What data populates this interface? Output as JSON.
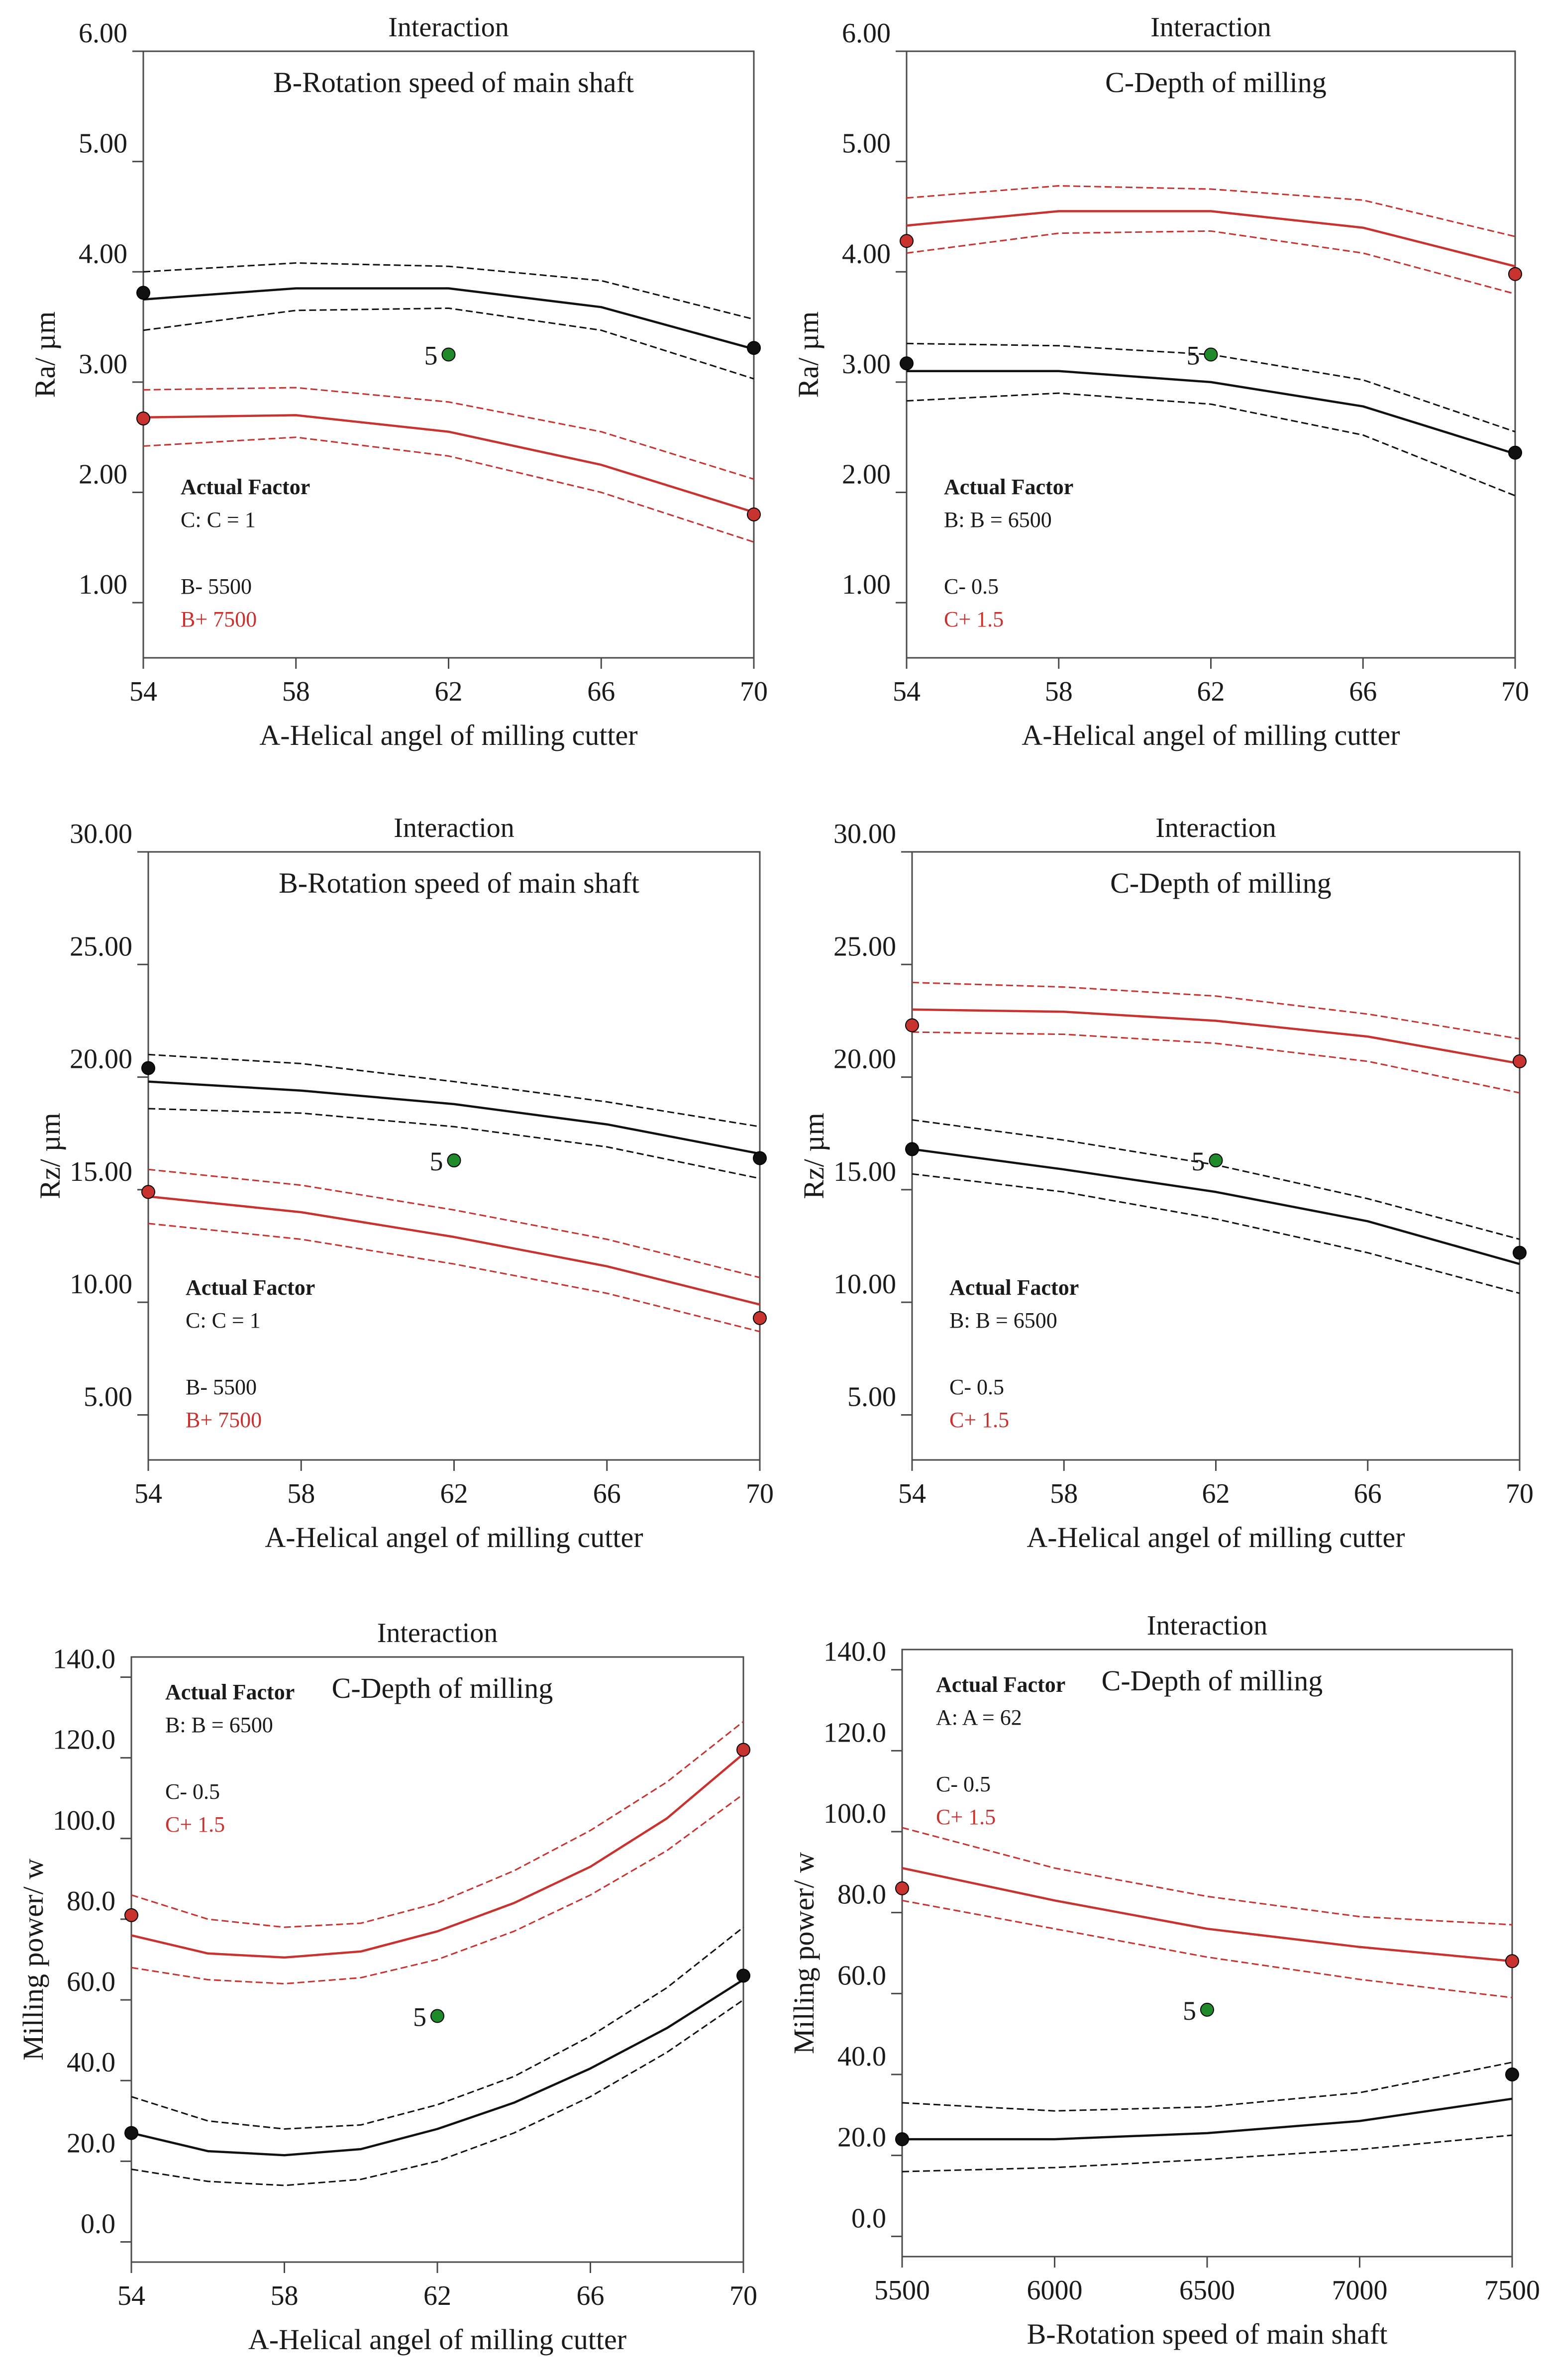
{
  "colors": {
    "black": "#111111",
    "red": "#c8322f",
    "green": "#1f8a2a",
    "frame": "#4a4a4a"
  },
  "chart_data": [
    {
      "type": "line",
      "title": "Interaction",
      "subtitle": "B-Rotation speed of main shaft",
      "xlabel": "A-Helical angel of milling cutter",
      "ylabel": "Ra/ µm",
      "xlim": [
        54,
        70
      ],
      "ylim": [
        0.5,
        6.0
      ],
      "xticks": [
        "54",
        "58",
        "62",
        "66",
        "70"
      ],
      "yticks": [
        "1.00",
        "2.00",
        "3.00",
        "4.00",
        "5.00",
        "6.00"
      ],
      "legend": {
        "heading": "Actual Factor",
        "factor": "C: C = 1",
        "low": "B- 5500",
        "high": "B+ 7500",
        "position": "bottom-left"
      },
      "series": [
        {
          "name": "B- 5500",
          "color": "black",
          "x": [
            54,
            58,
            62,
            66,
            70
          ],
          "y": [
            3.75,
            3.85,
            3.85,
            3.68,
            3.3
          ],
          "upper": [
            4.0,
            4.08,
            4.05,
            3.92,
            3.57
          ],
          "lower": [
            3.47,
            3.65,
            3.67,
            3.47,
            3.03
          ],
          "points": [
            {
              "x": 54,
              "y": 3.81
            },
            {
              "x": 70,
              "y": 3.31
            }
          ]
        },
        {
          "name": "B+ 7500",
          "color": "red",
          "x": [
            54,
            58,
            62,
            66,
            70
          ],
          "y": [
            2.68,
            2.7,
            2.55,
            2.25,
            1.82
          ],
          "upper": [
            2.93,
            2.95,
            2.82,
            2.55,
            2.12
          ],
          "lower": [
            2.42,
            2.5,
            2.33,
            2.0,
            1.55
          ],
          "points": [
            {
              "x": 54,
              "y": 2.67
            },
            {
              "x": 70,
              "y": 1.8
            }
          ]
        }
      ],
      "center_point": {
        "label": "5",
        "x": 62,
        "y": 3.25
      }
    },
    {
      "type": "line",
      "title": "Interaction",
      "subtitle": "C-Depth of milling",
      "xlabel": "A-Helical angel of milling cutter",
      "ylabel": "Ra/ µm",
      "xlim": [
        54,
        70
      ],
      "ylim": [
        0.5,
        6.0
      ],
      "xticks": [
        "54",
        "58",
        "62",
        "66",
        "70"
      ],
      "yticks": [
        "1.00",
        "2.00",
        "3.00",
        "4.00",
        "5.00",
        "6.00"
      ],
      "legend": {
        "heading": "Actual Factor",
        "factor": "B: B = 6500",
        "low": "C- 0.5",
        "high": "C+ 1.5",
        "position": "bottom-left"
      },
      "series": [
        {
          "name": "C- 0.5",
          "color": "black",
          "x": [
            54,
            58,
            62,
            66,
            70
          ],
          "y": [
            3.1,
            3.1,
            3.0,
            2.78,
            2.35
          ],
          "upper": [
            3.35,
            3.33,
            3.25,
            3.02,
            2.55
          ],
          "lower": [
            2.83,
            2.9,
            2.8,
            2.52,
            1.97
          ],
          "points": [
            {
              "x": 54,
              "y": 3.17
            },
            {
              "x": 70,
              "y": 2.36
            }
          ]
        },
        {
          "name": "C+ 1.5",
          "color": "red",
          "x": [
            54,
            58,
            62,
            66,
            70
          ],
          "y": [
            4.42,
            4.55,
            4.55,
            4.4,
            4.05
          ],
          "upper": [
            4.67,
            4.78,
            4.75,
            4.65,
            4.32
          ],
          "lower": [
            4.17,
            4.35,
            4.37,
            4.17,
            3.8
          ],
          "points": [
            {
              "x": 54,
              "y": 4.28
            },
            {
              "x": 70,
              "y": 3.98
            }
          ]
        }
      ],
      "center_point": {
        "label": "5",
        "x": 62,
        "y": 3.25
      }
    },
    {
      "type": "line",
      "title": "Interaction",
      "subtitle": "B-Rotation speed of main shaft",
      "xlabel": "A-Helical angel of milling cutter",
      "ylabel": "Rz/ µm",
      "xlim": [
        54,
        70
      ],
      "ylim": [
        3.0,
        30.0
      ],
      "xticks": [
        "54",
        "58",
        "62",
        "66",
        "70"
      ],
      "yticks": [
        "5.00",
        "10.00",
        "15.00",
        "20.00",
        "25.00",
        "30.00"
      ],
      "legend": {
        "heading": "Actual Factor",
        "factor": "C: C = 1",
        "low": "B- 5500",
        "high": "B+ 7500",
        "position": "bottom-left"
      },
      "series": [
        {
          "name": "B- 5500",
          "color": "black",
          "x": [
            54,
            58,
            62,
            66,
            70
          ],
          "y": [
            19.8,
            19.4,
            18.8,
            17.9,
            16.6
          ],
          "upper": [
            21.0,
            20.6,
            19.8,
            18.9,
            17.8
          ],
          "lower": [
            18.6,
            18.4,
            17.8,
            16.9,
            15.5
          ],
          "points": [
            {
              "x": 54,
              "y": 20.4
            },
            {
              "x": 70,
              "y": 16.4
            }
          ]
        },
        {
          "name": "B+ 7500",
          "color": "red",
          "x": [
            54,
            58,
            62,
            66,
            70
          ],
          "y": [
            14.7,
            14.0,
            12.9,
            11.6,
            9.9
          ],
          "upper": [
            15.9,
            15.2,
            14.1,
            12.8,
            11.1
          ],
          "lower": [
            13.5,
            12.8,
            11.7,
            10.4,
            8.7
          ],
          "points": [
            {
              "x": 54,
              "y": 14.9
            },
            {
              "x": 70,
              "y": 9.3
            }
          ]
        }
      ],
      "center_point": {
        "label": "5",
        "x": 62,
        "y": 16.3
      }
    },
    {
      "type": "line",
      "title": "Interaction",
      "subtitle": "C-Depth of milling",
      "xlabel": "A-Helical angel of milling cutter",
      "ylabel": "Rz/ µm",
      "xlim": [
        54,
        70
      ],
      "ylim": [
        3.0,
        30.0
      ],
      "xticks": [
        "54",
        "58",
        "62",
        "66",
        "70"
      ],
      "yticks": [
        "5.00",
        "10.00",
        "15.00",
        "20.00",
        "25.00",
        "30.00"
      ],
      "legend": {
        "heading": "Actual Factor",
        "factor": "B: B = 6500",
        "low": "C- 0.5",
        "high": "C+ 1.5",
        "position": "bottom-left"
      },
      "series": [
        {
          "name": "C- 0.5",
          "color": "black",
          "x": [
            54,
            58,
            62,
            66,
            70
          ],
          "y": [
            16.8,
            15.9,
            14.9,
            13.6,
            11.7
          ],
          "upper": [
            18.1,
            17.2,
            16.1,
            14.6,
            12.8
          ],
          "lower": [
            15.7,
            14.9,
            13.7,
            12.2,
            10.4
          ],
          "points": [
            {
              "x": 54,
              "y": 16.8
            },
            {
              "x": 70,
              "y": 12.2
            }
          ]
        },
        {
          "name": "C+ 1.5",
          "color": "red",
          "x": [
            54,
            58,
            62,
            66,
            70
          ],
          "y": [
            23.0,
            22.9,
            22.5,
            21.8,
            20.6
          ],
          "upper": [
            24.2,
            24.0,
            23.6,
            22.8,
            21.7
          ],
          "lower": [
            22.0,
            21.9,
            21.5,
            20.7,
            19.3
          ],
          "points": [
            {
              "x": 54,
              "y": 22.3
            },
            {
              "x": 70,
              "y": 20.7
            }
          ]
        }
      ],
      "center_point": {
        "label": "5",
        "x": 62,
        "y": 16.3
      }
    },
    {
      "type": "line",
      "title": "Interaction",
      "subtitle": "C-Depth of milling",
      "xlabel": "A-Helical angel of milling cutter",
      "ylabel": "Milling power/ w",
      "xlim": [
        54,
        70
      ],
      "ylim": [
        -5,
        145
      ],
      "xticks": [
        "54",
        "58",
        "62",
        "66",
        "70"
      ],
      "yticks": [
        "0.0",
        "20.0",
        "40.0",
        "60.0",
        "80.0",
        "100.0",
        "120.0",
        "140.0"
      ],
      "legend": {
        "heading": "Actual Factor",
        "factor": "B: B = 6500",
        "low": "C- 0.5",
        "high": "C+ 1.5",
        "position": "top-left"
      },
      "series": [
        {
          "name": "C- 0.5",
          "color": "black",
          "x": [
            54,
            56,
            58,
            60,
            62,
            64,
            66,
            68,
            70
          ],
          "y": [
            27,
            22.5,
            21.5,
            23,
            28,
            34.5,
            43,
            53,
            65
          ],
          "upper": [
            36,
            30,
            28,
            29,
            34,
            41,
            51,
            63,
            78
          ],
          "lower": [
            18,
            15,
            14,
            15.5,
            20,
            27,
            36,
            47,
            60
          ],
          "points": [
            {
              "x": 54,
              "y": 27
            },
            {
              "x": 70,
              "y": 66
            }
          ]
        },
        {
          "name": "C+ 1.5",
          "color": "red",
          "x": [
            54,
            56,
            58,
            60,
            62,
            64,
            66,
            68,
            70
          ],
          "y": [
            76,
            71.5,
            70.5,
            72,
            77,
            84,
            93,
            105,
            121
          ],
          "upper": [
            86,
            80,
            78,
            79,
            84,
            92,
            102,
            114,
            129
          ],
          "lower": [
            68,
            65,
            64,
            65.5,
            70,
            77,
            86,
            97,
            111
          ],
          "points": [
            {
              "x": 54,
              "y": 81
            },
            {
              "x": 70,
              "y": 122
            }
          ]
        }
      ],
      "center_point": {
        "label": "5",
        "x": 62,
        "y": 56
      }
    },
    {
      "type": "line",
      "title": "Interaction",
      "subtitle": "C-Depth of milling",
      "xlabel": "B-Rotation speed of main shaft",
      "ylabel": "Milling power/ w",
      "xlim": [
        5500,
        7500
      ],
      "ylim": [
        -5,
        145
      ],
      "xticks": [
        "5500",
        "6000",
        "6500",
        "7000",
        "7500"
      ],
      "yticks": [
        "0.0",
        "20.0",
        "40.0",
        "60.0",
        "80.0",
        "100.0",
        "120.0",
        "140.0"
      ],
      "legend": {
        "heading": "Actual Factor",
        "factor": "A: A = 62",
        "low": "C- 0.5",
        "high": "C+ 1.5",
        "position": "top-left"
      },
      "series": [
        {
          "name": "C- 0.5",
          "color": "black",
          "x": [
            5500,
            6000,
            6500,
            7000,
            7500
          ],
          "y": [
            24,
            24,
            25.5,
            28.5,
            34
          ],
          "upper": [
            33,
            31,
            32,
            35.5,
            43
          ],
          "lower": [
            16,
            17,
            19,
            21.5,
            25
          ],
          "points": [
            {
              "x": 5500,
              "y": 24
            },
            {
              "x": 7500,
              "y": 40
            }
          ]
        },
        {
          "name": "C+ 1.5",
          "color": "red",
          "x": [
            5500,
            6000,
            6500,
            7000,
            7500
          ],
          "y": [
            91,
            83,
            76,
            71.5,
            68
          ],
          "upper": [
            101,
            91,
            84,
            79,
            77
          ],
          "lower": [
            83,
            76,
            69,
            63.5,
            59
          ],
          "points": [
            {
              "x": 5500,
              "y": 86
            },
            {
              "x": 7500,
              "y": 68
            }
          ]
        }
      ],
      "center_point": {
        "label": "5",
        "x": 6500,
        "y": 56
      }
    }
  ]
}
